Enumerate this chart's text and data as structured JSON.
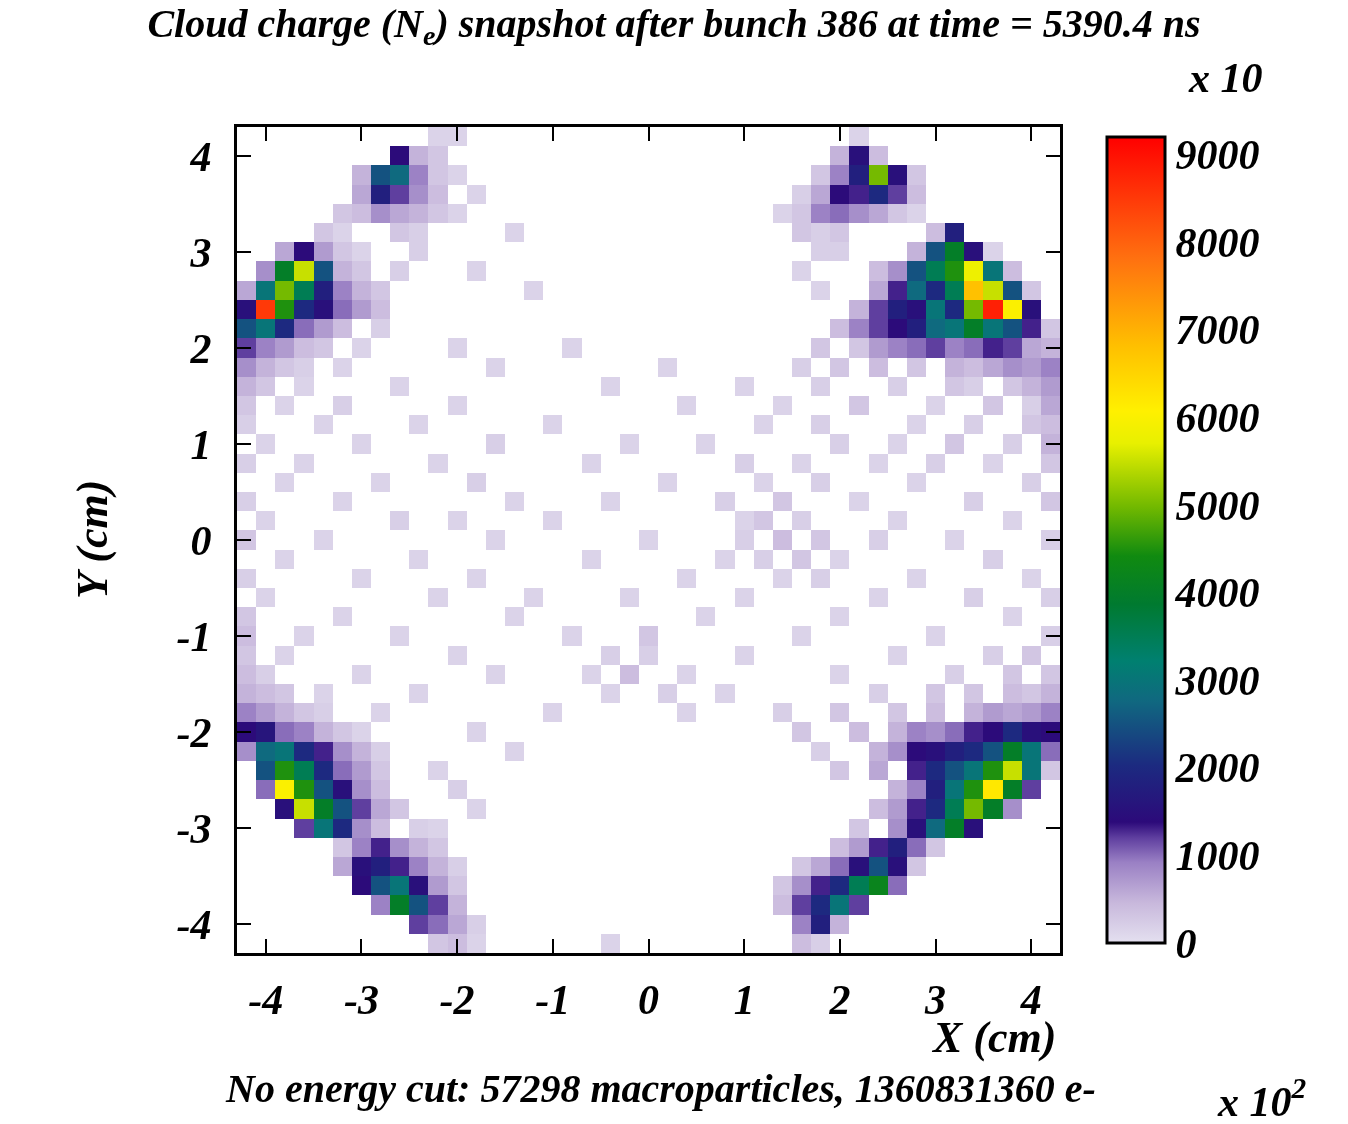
{
  "chart_data": {
    "type": "heatmap",
    "title": "Cloud charge (N$_{e}$) snapshot after bunch 386 at time = 5390.4 ns",
    "xlabel": "X (cm)",
    "ylabel": "Y (cm)",
    "annotations": [
      "No energy cut: 57298 macroparticles, 1360831360 e-",
      "x 10",
      "x 10$^{2}$"
    ],
    "xlim": [
      -4.3,
      4.3
    ],
    "ylim": [
      -4.3,
      4.3
    ],
    "xticks": [
      -4,
      -3,
      -2,
      -1,
      0,
      1,
      2,
      3,
      4
    ],
    "yticks": [
      -4,
      -3,
      -2,
      -1,
      0,
      1,
      2,
      3,
      4
    ],
    "clim": [
      0,
      9200
    ],
    "cticks": [
      0,
      1000,
      2000,
      3000,
      4000,
      5000,
      6000,
      7000,
      8000,
      9000
    ],
    "grid": false,
    "cells": [
      [
        null,
        null,
        null,
        null,
        null,
        null,
        null,
        null,
        null,
        null,
        150,
        150,
        null,
        null,
        null,
        null,
        null,
        null,
        null,
        null,
        null,
        null,
        null,
        null,
        null,
        null,
        null,
        null,
        null,
        null,
        null,
        null,
        150,
        null,
        null,
        null,
        null,
        null,
        null,
        null,
        null,
        null,
        null
      ],
      [
        null,
        null,
        null,
        null,
        null,
        null,
        null,
        null,
        1400,
        500,
        300,
        null,
        null,
        null,
        null,
        null,
        null,
        null,
        null,
        null,
        null,
        null,
        null,
        null,
        null,
        null,
        null,
        null,
        null,
        null,
        null,
        500,
        1500,
        400,
        null,
        null,
        null,
        null,
        null,
        null,
        null,
        null,
        null
      ],
      [
        null,
        null,
        null,
        null,
        null,
        null,
        500,
        2500,
        2800,
        900,
        300,
        150,
        null,
        null,
        null,
        null,
        null,
        null,
        null,
        null,
        null,
        null,
        null,
        null,
        null,
        null,
        null,
        null,
        null,
        null,
        300,
        900,
        1800,
        5000,
        1500,
        300,
        null,
        null,
        null,
        null,
        null,
        null,
        null
      ],
      [
        null,
        null,
        null,
        null,
        null,
        null,
        600,
        1800,
        1200,
        800,
        400,
        null,
        150,
        null,
        null,
        null,
        null,
        null,
        null,
        null,
        null,
        null,
        null,
        null,
        null,
        null,
        null,
        null,
        null,
        200,
        600,
        1400,
        1300,
        2000,
        1200,
        400,
        null,
        null,
        null,
        null,
        null,
        null,
        null
      ],
      [
        null,
        null,
        null,
        null,
        null,
        300,
        400,
        800,
        600,
        500,
        300,
        150,
        null,
        null,
        null,
        null,
        null,
        null,
        null,
        null,
        null,
        null,
        null,
        null,
        null,
        null,
        null,
        null,
        150,
        300,
        900,
        1000,
        800,
        600,
        300,
        150,
        null,
        null,
        null,
        null,
        null,
        null,
        null
      ],
      [
        null,
        null,
        null,
        null,
        300,
        150,
        null,
        null,
        300,
        200,
        null,
        null,
        null,
        null,
        150,
        null,
        null,
        null,
        null,
        null,
        null,
        null,
        null,
        null,
        null,
        null,
        null,
        null,
        null,
        300,
        200,
        300,
        null,
        null,
        null,
        null,
        400,
        1800,
        null,
        null,
        null,
        null,
        null
      ],
      [
        null,
        null,
        600,
        1400,
        700,
        300,
        150,
        null,
        null,
        200,
        null,
        null,
        null,
        null,
        null,
        null,
        null,
        null,
        null,
        null,
        null,
        null,
        null,
        null,
        null,
        null,
        null,
        null,
        null,
        null,
        200,
        200,
        null,
        null,
        null,
        500,
        2500,
        4000,
        1500,
        150,
        null,
        null,
        null
      ],
      [
        null,
        800,
        4000,
        5500,
        2500,
        500,
        300,
        null,
        200,
        null,
        null,
        null,
        150,
        null,
        null,
        null,
        null,
        null,
        null,
        null,
        null,
        null,
        null,
        null,
        null,
        null,
        null,
        null,
        null,
        150,
        null,
        null,
        null,
        400,
        800,
        2500,
        3500,
        4500,
        5800,
        3000,
        400,
        null,
        null
      ],
      [
        600,
        3000,
        5000,
        3500,
        1800,
        900,
        500,
        300,
        null,
        null,
        null,
        null,
        null,
        null,
        null,
        150,
        null,
        null,
        null,
        null,
        null,
        null,
        null,
        null,
        null,
        null,
        null,
        null,
        null,
        null,
        150,
        null,
        null,
        600,
        1300,
        2800,
        2000,
        3500,
        6800,
        5500,
        2500,
        300,
        null
      ],
      [
        1500,
        8500,
        4500,
        2000,
        1500,
        1000,
        700,
        400,
        null,
        null,
        null,
        null,
        null,
        null,
        null,
        null,
        null,
        null,
        null,
        null,
        null,
        null,
        null,
        null,
        null,
        null,
        null,
        null,
        null,
        null,
        null,
        null,
        500,
        1200,
        1800,
        1500,
        3000,
        2000,
        5000,
        8800,
        6000,
        1500,
        null
      ],
      [
        2500,
        3000,
        2000,
        1000,
        700,
        400,
        null,
        200,
        null,
        null,
        null,
        null,
        null,
        null,
        null,
        null,
        null,
        null,
        null,
        null,
        null,
        null,
        null,
        null,
        null,
        null,
        null,
        null,
        null,
        null,
        null,
        400,
        900,
        1200,
        1400,
        1800,
        2800,
        3000,
        4000,
        3000,
        2500,
        1300,
        300
      ],
      [
        1200,
        900,
        700,
        400,
        300,
        null,
        150,
        null,
        null,
        null,
        null,
        150,
        null,
        null,
        null,
        null,
        null,
        150,
        null,
        null,
        null,
        null,
        null,
        null,
        null,
        null,
        null,
        null,
        null,
        null,
        300,
        null,
        300,
        700,
        900,
        1000,
        1200,
        900,
        1000,
        1300,
        1200,
        600,
        500
      ],
      [
        800,
        500,
        300,
        200,
        null,
        150,
        null,
        null,
        null,
        null,
        null,
        null,
        null,
        150,
        null,
        null,
        null,
        null,
        null,
        null,
        null,
        null,
        150,
        null,
        null,
        null,
        null,
        null,
        null,
        200,
        null,
        300,
        null,
        400,
        null,
        300,
        null,
        500,
        400,
        600,
        800,
        700,
        900
      ],
      [
        500,
        300,
        null,
        150,
        null,
        null,
        null,
        null,
        150,
        null,
        null,
        null,
        null,
        null,
        null,
        null,
        null,
        null,
        null,
        150,
        null,
        null,
        null,
        null,
        null,
        null,
        150,
        null,
        null,
        null,
        200,
        null,
        null,
        null,
        200,
        null,
        null,
        300,
        200,
        null,
        300,
        500,
        700
      ],
      [
        300,
        null,
        150,
        null,
        null,
        200,
        null,
        null,
        null,
        null,
        null,
        150,
        null,
        null,
        null,
        null,
        null,
        null,
        null,
        null,
        null,
        null,
        null,
        150,
        null,
        null,
        null,
        null,
        150,
        null,
        null,
        null,
        300,
        null,
        null,
        null,
        150,
        null,
        null,
        300,
        null,
        200,
        600
      ],
      [
        200,
        null,
        null,
        null,
        150,
        null,
        null,
        null,
        null,
        150,
        null,
        null,
        null,
        null,
        null,
        null,
        150,
        null,
        null,
        null,
        null,
        null,
        null,
        null,
        null,
        null,
        null,
        150,
        null,
        null,
        200,
        null,
        null,
        null,
        null,
        150,
        null,
        null,
        200,
        null,
        null,
        300,
        400
      ],
      [
        null,
        150,
        null,
        null,
        null,
        null,
        150,
        null,
        null,
        null,
        null,
        null,
        null,
        200,
        null,
        null,
        null,
        null,
        null,
        null,
        150,
        null,
        null,
        null,
        150,
        null,
        null,
        null,
        null,
        null,
        null,
        200,
        null,
        null,
        150,
        null,
        null,
        300,
        null,
        null,
        200,
        null,
        500
      ],
      [
        200,
        null,
        null,
        150,
        null,
        null,
        null,
        null,
        null,
        null,
        150,
        null,
        null,
        null,
        null,
        null,
        null,
        null,
        150,
        null,
        null,
        null,
        null,
        null,
        null,
        null,
        200,
        null,
        null,
        150,
        null,
        null,
        null,
        150,
        null,
        null,
        200,
        null,
        null,
        150,
        null,
        null,
        300
      ],
      [
        null,
        null,
        150,
        null,
        null,
        null,
        null,
        150,
        null,
        null,
        null,
        null,
        200,
        null,
        null,
        null,
        null,
        null,
        null,
        null,
        null,
        null,
        150,
        null,
        null,
        null,
        null,
        150,
        null,
        null,
        200,
        null,
        null,
        null,
        null,
        150,
        null,
        null,
        null,
        null,
        null,
        200,
        null
      ],
      [
        200,
        null,
        null,
        null,
        null,
        150,
        null,
        null,
        null,
        null,
        null,
        null,
        null,
        null,
        150,
        null,
        null,
        null,
        null,
        150,
        null,
        null,
        null,
        null,
        null,
        200,
        null,
        null,
        300,
        null,
        null,
        null,
        150,
        null,
        null,
        null,
        null,
        null,
        200,
        null,
        null,
        null,
        300
      ],
      [
        null,
        150,
        null,
        null,
        null,
        null,
        null,
        null,
        200,
        null,
        null,
        150,
        null,
        null,
        null,
        null,
        150,
        null,
        null,
        null,
        null,
        null,
        null,
        null,
        null,
        null,
        150,
        300,
        null,
        200,
        null,
        null,
        null,
        null,
        150,
        null,
        null,
        null,
        null,
        null,
        150,
        null,
        null
      ],
      [
        300,
        null,
        null,
        null,
        150,
        null,
        null,
        null,
        null,
        null,
        null,
        null,
        null,
        150,
        null,
        null,
        null,
        null,
        null,
        null,
        null,
        150,
        null,
        null,
        null,
        null,
        200,
        null,
        400,
        null,
        300,
        null,
        null,
        200,
        null,
        null,
        null,
        150,
        null,
        null,
        null,
        null,
        200
      ],
      [
        null,
        null,
        150,
        null,
        null,
        null,
        null,
        null,
        null,
        150,
        null,
        null,
        null,
        null,
        null,
        null,
        null,
        null,
        150,
        null,
        null,
        null,
        null,
        null,
        null,
        150,
        null,
        200,
        null,
        300,
        null,
        150,
        null,
        null,
        null,
        null,
        null,
        null,
        null,
        200,
        null,
        null,
        null
      ],
      [
        200,
        null,
        null,
        null,
        null,
        null,
        150,
        null,
        null,
        null,
        null,
        null,
        150,
        null,
        null,
        null,
        null,
        null,
        null,
        null,
        null,
        null,
        null,
        150,
        null,
        null,
        null,
        null,
        150,
        null,
        200,
        null,
        null,
        null,
        null,
        150,
        null,
        null,
        null,
        null,
        null,
        150,
        null
      ],
      [
        null,
        150,
        null,
        null,
        null,
        null,
        null,
        null,
        null,
        null,
        150,
        null,
        null,
        null,
        null,
        150,
        null,
        null,
        null,
        null,
        150,
        null,
        null,
        null,
        null,
        null,
        150,
        null,
        null,
        null,
        null,
        null,
        null,
        150,
        null,
        null,
        null,
        null,
        200,
        null,
        null,
        null,
        200
      ],
      [
        300,
        null,
        null,
        null,
        null,
        150,
        null,
        null,
        null,
        null,
        null,
        null,
        null,
        null,
        150,
        null,
        null,
        null,
        null,
        null,
        null,
        null,
        null,
        null,
        150,
        null,
        null,
        null,
        null,
        null,
        null,
        150,
        null,
        null,
        null,
        null,
        null,
        null,
        null,
        null,
        150,
        null,
        null
      ],
      [
        400,
        null,
        null,
        150,
        null,
        null,
        null,
        null,
        150,
        null,
        null,
        null,
        null,
        null,
        null,
        null,
        null,
        150,
        null,
        null,
        null,
        300,
        null,
        null,
        null,
        null,
        null,
        null,
        null,
        150,
        null,
        null,
        null,
        null,
        null,
        null,
        150,
        null,
        null,
        null,
        null,
        null,
        200
      ],
      [
        300,
        null,
        150,
        null,
        null,
        null,
        null,
        null,
        null,
        null,
        null,
        150,
        null,
        null,
        null,
        null,
        null,
        null,
        null,
        200,
        null,
        200,
        null,
        null,
        null,
        null,
        150,
        null,
        null,
        null,
        null,
        null,
        null,
        null,
        150,
        null,
        null,
        null,
        null,
        200,
        null,
        300,
        null
      ],
      [
        400,
        200,
        null,
        null,
        null,
        null,
        150,
        null,
        null,
        null,
        null,
        null,
        null,
        150,
        null,
        null,
        null,
        null,
        150,
        null,
        400,
        null,
        null,
        150,
        null,
        null,
        null,
        null,
        null,
        null,
        null,
        150,
        null,
        null,
        null,
        null,
        null,
        200,
        null,
        null,
        300,
        null,
        300
      ],
      [
        500,
        400,
        300,
        null,
        150,
        null,
        null,
        null,
        null,
        150,
        null,
        null,
        null,
        null,
        null,
        null,
        null,
        null,
        null,
        150,
        null,
        null,
        200,
        null,
        null,
        150,
        null,
        null,
        null,
        null,
        null,
        null,
        null,
        200,
        null,
        null,
        300,
        null,
        300,
        null,
        400,
        300,
        500
      ],
      [
        900,
        700,
        500,
        300,
        200,
        null,
        null,
        150,
        null,
        null,
        null,
        null,
        null,
        null,
        null,
        null,
        150,
        null,
        null,
        null,
        null,
        null,
        null,
        150,
        null,
        null,
        null,
        null,
        200,
        null,
        null,
        300,
        null,
        null,
        300,
        null,
        400,
        null,
        500,
        700,
        600,
        700,
        900
      ],
      [
        1400,
        1600,
        1000,
        900,
        500,
        300,
        150,
        null,
        null,
        null,
        null,
        null,
        150,
        null,
        null,
        null,
        null,
        null,
        null,
        null,
        null,
        null,
        null,
        null,
        null,
        null,
        null,
        null,
        null,
        300,
        null,
        null,
        400,
        null,
        500,
        900,
        800,
        1000,
        1300,
        1400,
        2000,
        1500,
        1400
      ],
      [
        800,
        2800,
        3000,
        2000,
        1300,
        800,
        500,
        200,
        null,
        null,
        null,
        null,
        null,
        null,
        150,
        null,
        null,
        null,
        null,
        null,
        null,
        null,
        null,
        null,
        null,
        null,
        null,
        null,
        null,
        null,
        200,
        null,
        null,
        500,
        800,
        1400,
        1500,
        1800,
        2000,
        2500,
        4000,
        3000,
        1000
      ],
      [
        null,
        2500,
        4500,
        3500,
        2000,
        1000,
        700,
        300,
        null,
        null,
        150,
        null,
        null,
        null,
        null,
        null,
        null,
        null,
        null,
        null,
        null,
        null,
        null,
        null,
        null,
        null,
        null,
        null,
        null,
        null,
        null,
        300,
        null,
        600,
        null,
        1300,
        2000,
        2500,
        3000,
        4500,
        5500,
        3000,
        300
      ],
      [
        null,
        1000,
        6000,
        4500,
        2500,
        1500,
        800,
        400,
        null,
        null,
        null,
        200,
        null,
        null,
        null,
        null,
        null,
        null,
        null,
        null,
        null,
        null,
        null,
        null,
        null,
        null,
        null,
        null,
        null,
        null,
        null,
        null,
        null,
        null,
        500,
        900,
        1800,
        3000,
        4500,
        6200,
        4000,
        1200,
        null
      ],
      [
        null,
        null,
        1500,
        5500,
        4000,
        2500,
        1200,
        600,
        300,
        null,
        null,
        null,
        150,
        null,
        null,
        null,
        null,
        null,
        null,
        null,
        null,
        null,
        null,
        null,
        null,
        null,
        null,
        null,
        null,
        null,
        null,
        null,
        null,
        400,
        700,
        1300,
        2000,
        3500,
        5000,
        4000,
        800,
        null,
        null
      ],
      [
        null,
        null,
        null,
        1200,
        3000,
        2000,
        800,
        400,
        null,
        200,
        150,
        null,
        null,
        null,
        null,
        null,
        null,
        null,
        null,
        null,
        null,
        null,
        null,
        null,
        null,
        null,
        null,
        null,
        null,
        null,
        null,
        null,
        300,
        null,
        800,
        1500,
        2800,
        4000,
        1500,
        null,
        null,
        null,
        null
      ],
      [
        null,
        null,
        null,
        null,
        null,
        300,
        900,
        1300,
        800,
        500,
        300,
        null,
        null,
        null,
        null,
        null,
        null,
        null,
        null,
        null,
        null,
        null,
        null,
        null,
        null,
        null,
        null,
        null,
        null,
        null,
        null,
        400,
        700,
        1300,
        1800,
        1000,
        300,
        null,
        null,
        null,
        null,
        null,
        null
      ],
      [
        null,
        null,
        null,
        null,
        null,
        600,
        1500,
        1800,
        1300,
        900,
        500,
        200,
        null,
        null,
        null,
        null,
        null,
        null,
        null,
        null,
        null,
        null,
        null,
        null,
        null,
        null,
        null,
        null,
        null,
        300,
        600,
        1000,
        1500,
        2500,
        1500,
        300,
        null,
        null,
        null,
        null,
        null,
        null,
        null
      ],
      [
        null,
        null,
        null,
        null,
        null,
        null,
        1400,
        2500,
        3000,
        1500,
        700,
        300,
        null,
        null,
        null,
        null,
        null,
        null,
        null,
        null,
        null,
        null,
        null,
        null,
        null,
        null,
        null,
        null,
        300,
        800,
        1300,
        2000,
        3500,
        4200,
        1000,
        null,
        null,
        null,
        null,
        null,
        null,
        null,
        null
      ],
      [
        null,
        null,
        null,
        null,
        null,
        null,
        null,
        900,
        4000,
        2500,
        1200,
        500,
        null,
        null,
        null,
        null,
        null,
        null,
        null,
        null,
        null,
        null,
        null,
        null,
        null,
        null,
        null,
        null,
        400,
        1200,
        2000,
        3000,
        1200,
        null,
        null,
        null,
        null,
        null,
        null,
        null,
        null,
        null,
        null
      ],
      [
        null,
        null,
        null,
        null,
        null,
        null,
        null,
        null,
        null,
        1200,
        1000,
        600,
        200,
        null,
        null,
        null,
        null,
        null,
        null,
        null,
        null,
        null,
        null,
        null,
        null,
        null,
        null,
        null,
        null,
        900,
        1800,
        500,
        null,
        null,
        null,
        null,
        null,
        null,
        null,
        null,
        null,
        null,
        null
      ],
      [
        null,
        null,
        null,
        null,
        null,
        null,
        null,
        null,
        null,
        null,
        300,
        400,
        150,
        null,
        null,
        null,
        null,
        null,
        null,
        150,
        null,
        null,
        null,
        null,
        null,
        null,
        null,
        null,
        null,
        400,
        200,
        null,
        null,
        null,
        null,
        null,
        null,
        null,
        null,
        null,
        null,
        null,
        null
      ]
    ]
  }
}
